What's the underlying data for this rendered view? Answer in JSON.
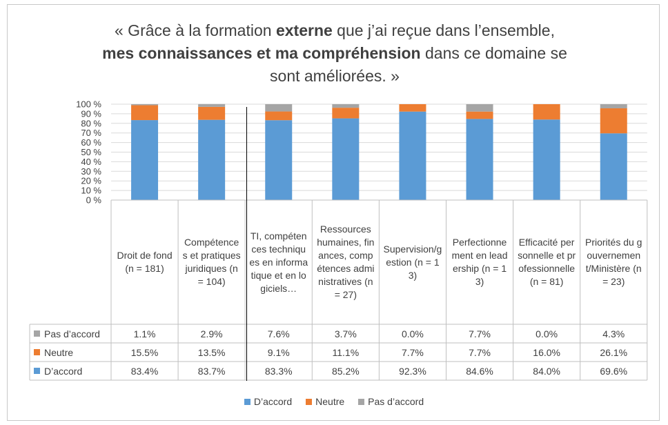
{
  "title": {
    "line1_pre": "« Grâce à la formation ",
    "line1_bold": "externe",
    "line1_post": " que j’ai reçue dans l’ensemble,",
    "line2_bold": "mes connaissances et ma compréhension",
    "line2_post": " dans ce domaine se",
    "line3": "sont améliorées. »"
  },
  "colors": {
    "accord": "#5b9bd5",
    "neutre": "#ed7d31",
    "pas": "#a5a5a5"
  },
  "chart_data": {
    "type": "bar",
    "stacked": true,
    "percent": true,
    "ylim": [
      0,
      100
    ],
    "yticks": [
      "0 %",
      "10 %",
      "20 %",
      "30 %",
      "40 %",
      "50 %",
      "60 %",
      "70 %",
      "80 %",
      "90 %",
      "100 %"
    ],
    "grid": true,
    "legend_position": "bottom",
    "categories": [
      "Droit de fond (n = 181)",
      "Compétences et pratiques juridiques (n = 104)",
      "TI, compétences techniques en informatique et en logiciels…",
      "Ressources humaines, finances, compétences administratives (n = 27)",
      "Supervision/gestion (n = 13)",
      "Perfectionnement en leadership (n = 13)",
      "Efficacité personnelle et professionnelle (n = 81)",
      "Priorités du gouvernement/Ministère (n = 23)"
    ],
    "series": [
      {
        "name": "D’accord",
        "values": [
          83.4,
          83.7,
          83.3,
          85.2,
          92.3,
          84.6,
          84.0,
          69.6
        ],
        "labels": [
          "83.4%",
          "83.7%",
          "83.3%",
          "85.2%",
          "92.3%",
          "84.6%",
          "84.0%",
          "69.6%"
        ]
      },
      {
        "name": "Neutre",
        "values": [
          15.5,
          13.5,
          9.1,
          11.1,
          7.7,
          7.7,
          16.0,
          26.1
        ],
        "labels": [
          "15.5%",
          "13.5%",
          "9.1%",
          "11.1%",
          "7.7%",
          "7.7%",
          "16.0%",
          "26.1%"
        ]
      },
      {
        "name": "Pas d’accord",
        "values": [
          1.1,
          2.9,
          7.6,
          3.7,
          0.0,
          7.7,
          0.0,
          4.3
        ],
        "labels": [
          "1.1%",
          "2.9%",
          "7.6%",
          "3.7%",
          "0.0%",
          "7.7%",
          "0.0%",
          "4.3%"
        ]
      }
    ]
  },
  "table_rows": [
    {
      "series_index": 2,
      "label": "Pas d’accord"
    },
    {
      "series_index": 1,
      "label": "Neutre"
    },
    {
      "series_index": 0,
      "label": "D’accord"
    }
  ],
  "legend": [
    {
      "series_index": 0,
      "label": "D’accord"
    },
    {
      "series_index": 1,
      "label": "Neutre"
    },
    {
      "series_index": 2,
      "label": "Pas d’accord"
    }
  ]
}
